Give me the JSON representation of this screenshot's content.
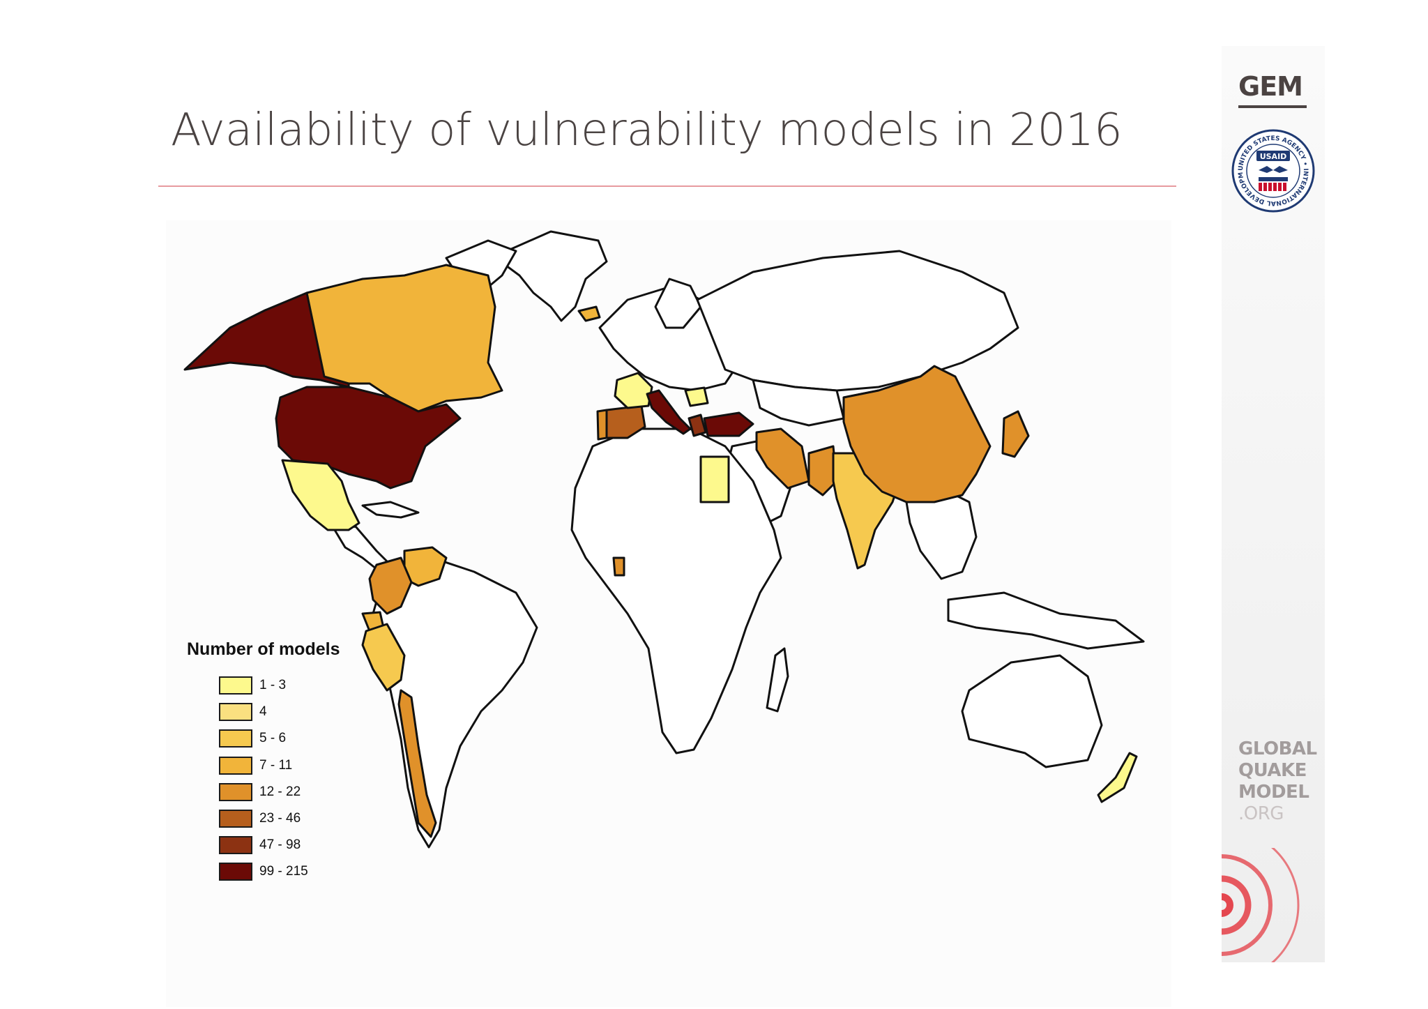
{
  "slide": {
    "title": "Availability of vulnerability models in 2016"
  },
  "legend": {
    "title": "Number of models",
    "items": [
      {
        "label": "1 - 3",
        "color": "#fdf98d"
      },
      {
        "label": "4",
        "color": "#fae080"
      },
      {
        "label": "5 - 6",
        "color": "#f6c94f"
      },
      {
        "label": "7 - 11",
        "color": "#f1b43a"
      },
      {
        "label": "12 - 22",
        "color": "#e0912a"
      },
      {
        "label": "23 - 46",
        "color": "#b65f1d"
      },
      {
        "label": "47 - 98",
        "color": "#8c3212"
      },
      {
        "label": "99 - 215",
        "color": "#6b0a06"
      }
    ]
  },
  "regions": [
    {
      "name": "Alaska",
      "class": "99 - 215"
    },
    {
      "name": "Canada",
      "class": "7 - 11"
    },
    {
      "name": "United States",
      "class": "99 - 215"
    },
    {
      "name": "Mexico",
      "class": "1 - 3"
    },
    {
      "name": "Colombia",
      "class": "12 - 22"
    },
    {
      "name": "Venezuela",
      "class": "7 - 11"
    },
    {
      "name": "Ecuador",
      "class": "7 - 11"
    },
    {
      "name": "Peru",
      "class": "5 - 6"
    },
    {
      "name": "Chile",
      "class": "12 - 22"
    },
    {
      "name": "Spain",
      "class": "23 - 46"
    },
    {
      "name": "Portugal",
      "class": "12 - 22"
    },
    {
      "name": "France",
      "class": "1 - 3"
    },
    {
      "name": "Italy",
      "class": "99 - 215"
    },
    {
      "name": "Greece",
      "class": "47 - 98"
    },
    {
      "name": "Turkey",
      "class": "99 - 215"
    },
    {
      "name": "Romania",
      "class": "1 - 3"
    },
    {
      "name": "Egypt",
      "class": "1 - 3"
    },
    {
      "name": "Iran",
      "class": "12 - 22"
    },
    {
      "name": "Pakistan",
      "class": "12 - 22"
    },
    {
      "name": "India",
      "class": "5 - 6"
    },
    {
      "name": "China",
      "class": "12 - 22"
    },
    {
      "name": "Japan",
      "class": "12 - 22"
    },
    {
      "name": "Ghana",
      "class": "12 - 22"
    },
    {
      "name": "Iceland",
      "class": "7 - 11"
    },
    {
      "name": "New Zealand",
      "class": "1 - 3"
    }
  ],
  "branding": {
    "gem": "GEM",
    "usaid_ring": "UNITED STATES AGENCY • INTERNATIONAL DEVELOPMENT •",
    "usaid_badge": "USAID",
    "gqm_lines": [
      "GLOBAL",
      "QUAKE",
      "MODEL"
    ],
    "gqm_org": ".ORG"
  }
}
